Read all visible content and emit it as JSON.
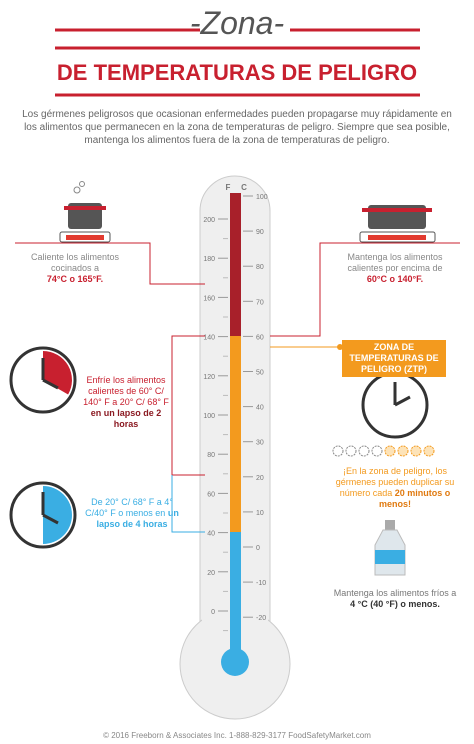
{
  "header": {
    "title_script": "-Zona-",
    "title": "DE TEMPERATURAS DE PELIGRO",
    "intro": "Los gérmenes peligrosos que ocasionan enfermedades pueden propagarse muy rápidamente en los alimentos que permanecen en la zona de temperaturas de peligro.  Siempre que sea posible, mantenga los alimentos fuera de la zona de temperaturas de peligro."
  },
  "thermometer": {
    "f_label": "F",
    "c_label": "C",
    "f_ticks": [
      "200",
      "180",
      "160",
      "140",
      "120",
      "100",
      "80",
      "60",
      "40",
      "20",
      "0"
    ],
    "c_ticks": [
      "100",
      "90",
      "80",
      "70",
      "60",
      "50",
      "40",
      "30",
      "20",
      "10",
      "0",
      "-10",
      "-20"
    ]
  },
  "notes": {
    "cook": {
      "text": "Caliente los alimentos cocinados a",
      "emphasis": "74°C o 165°F."
    },
    "hold_hot": {
      "text": "Mantenga los alimentos calientes por encima de",
      "emphasis": "60°C o 140°F."
    },
    "zone": {
      "label": "ZONA DE TEMPERATURAS DE PELIGRO (ZTP)"
    },
    "cool_2h": {
      "text": "Enfríe los alimentos calientes de 60° C/ 140° F a 20° C/ 68° F",
      "emphasis": "en un lapso de 2 horas"
    },
    "cool_4h": {
      "text": "De 20° C/ 68° F a 4° C/40° F o menos en",
      "emphasis": "un lapso de 4 horas"
    },
    "germs": {
      "text": "¡En la zona de peligro, los gérmenes pueden duplicar su número cada",
      "emphasis": "20 minutos o menos!"
    },
    "hold_cold": {
      "text": "Mantenga los alimentos fríos a",
      "emphasis": "4 °C (40 °F) o menos."
    }
  },
  "footer": "© 2016 Freeborn & Associates Inc. 1-888-829-3177 FoodSafetyMarket.com"
}
